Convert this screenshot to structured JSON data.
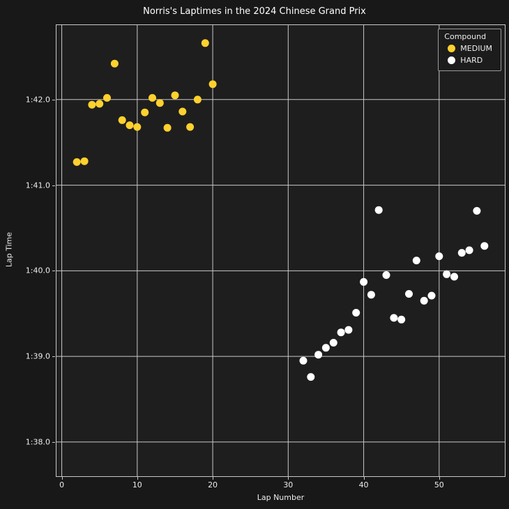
{
  "figure": {
    "title": "Norris's Laptimes in the 2024 Chinese Grand Prix",
    "xlabel": "Lap Number",
    "ylabel": "Lap Time"
  },
  "legend": {
    "title": "Compound",
    "entries": [
      {
        "label": "MEDIUM",
        "color": "#ffd12e"
      },
      {
        "label": "HARD",
        "color": "#ffffff"
      }
    ]
  },
  "colors": {
    "figure_background": "#181818",
    "plot_background": "#1e1e1e",
    "grid": "#c9c9c9",
    "text": "#ffffff"
  },
  "chart_data": {
    "type": "scatter",
    "title": "Norris's Laptimes in the 2024 Chinese Grand Prix",
    "xlabel": "Lap Number",
    "ylabel": "Lap Time",
    "grid": true,
    "legend_position": "upper right",
    "xlim": [
      -0.7,
      58.7
    ],
    "ylim": [
      97.6,
      102.87
    ],
    "x_ticks": [
      0,
      10,
      20,
      30,
      40,
      50
    ],
    "y_ticks": [
      {
        "value": 98,
        "label": "1:38.0"
      },
      {
        "value": 99,
        "label": "1:39.0"
      },
      {
        "value": 100,
        "label": "1:40.0"
      },
      {
        "value": 101,
        "label": "1:41.0"
      },
      {
        "value": 102,
        "label": "1:42.0"
      }
    ],
    "y_unit": "minutes:seconds (values stored as seconds)",
    "series": [
      {
        "name": "MEDIUM",
        "color": "#ffd12e",
        "points": [
          [
            2,
            101.27
          ],
          [
            3,
            101.28
          ],
          [
            4,
            101.94
          ],
          [
            5,
            101.95
          ],
          [
            6,
            102.02
          ],
          [
            7,
            102.42
          ],
          [
            8,
            101.76
          ],
          [
            9,
            101.7
          ],
          [
            10,
            101.68
          ],
          [
            11,
            101.85
          ],
          [
            12,
            102.02
          ],
          [
            13,
            101.96
          ],
          [
            14,
            101.67
          ],
          [
            15,
            102.05
          ],
          [
            16,
            101.86
          ],
          [
            17,
            101.68
          ],
          [
            18,
            102.0
          ],
          [
            19,
            102.66
          ],
          [
            20,
            102.18
          ]
        ]
      },
      {
        "name": "HARD",
        "color": "#ffffff",
        "points": [
          [
            32,
            98.95
          ],
          [
            33,
            98.76
          ],
          [
            34,
            99.02
          ],
          [
            35,
            99.1
          ],
          [
            36,
            99.16
          ],
          [
            37,
            99.28
          ],
          [
            38,
            99.31
          ],
          [
            39,
            99.51
          ],
          [
            40,
            99.87
          ],
          [
            41,
            99.72
          ],
          [
            42,
            100.71
          ],
          [
            43,
            99.95
          ],
          [
            44,
            99.45
          ],
          [
            45,
            99.43
          ],
          [
            46,
            99.73
          ],
          [
            47,
            100.12
          ],
          [
            48,
            99.65
          ],
          [
            49,
            99.71
          ],
          [
            50,
            100.17
          ],
          [
            51,
            99.96
          ],
          [
            52,
            99.93
          ],
          [
            53,
            100.21
          ],
          [
            54,
            100.24
          ],
          [
            55,
            100.7
          ],
          [
            56,
            100.29
          ]
        ]
      }
    ]
  }
}
